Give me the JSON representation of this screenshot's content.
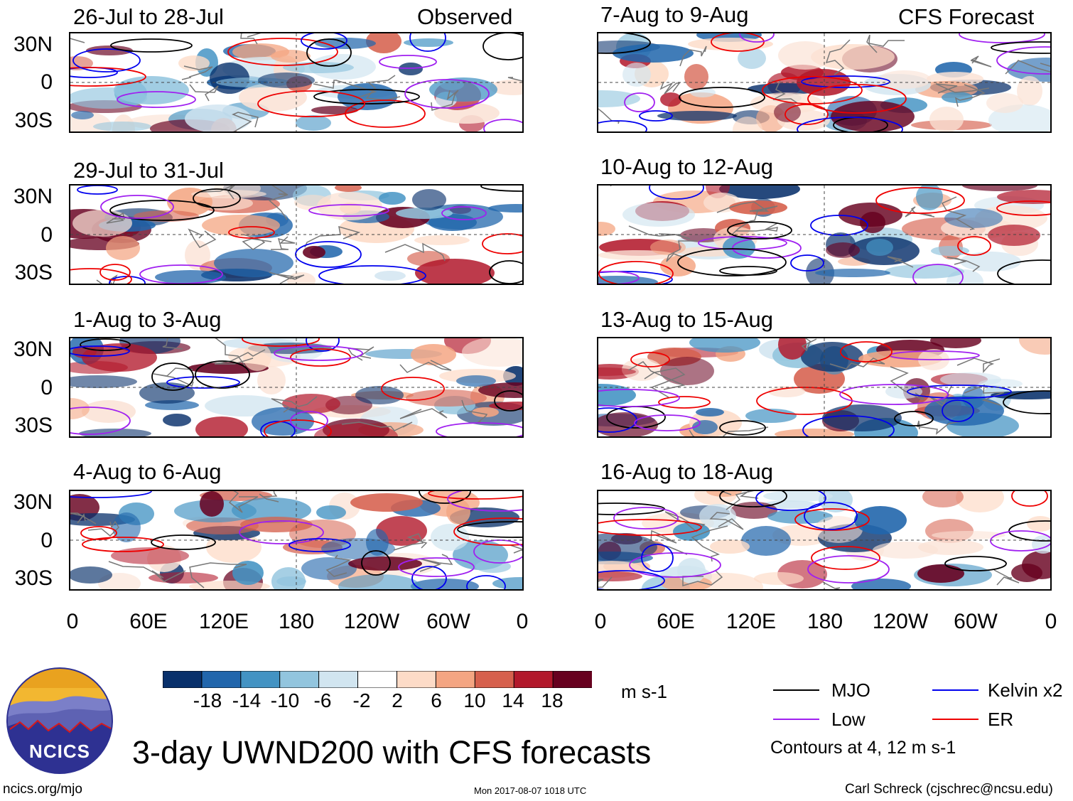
{
  "headers": {
    "left": "Observed",
    "right": "CFS Forecast"
  },
  "panels": [
    {
      "title": "26-Jul to 28-Jul",
      "kind": "observed"
    },
    {
      "title": "29-Jul to 31-Jul",
      "kind": "observed"
    },
    {
      "title": "1-Aug to 3-Aug",
      "kind": "observed"
    },
    {
      "title": "4-Aug to 6-Aug",
      "kind": "observed"
    },
    {
      "title": "7-Aug to 9-Aug",
      "kind": "forecast"
    },
    {
      "title": "10-Aug to 12-Aug",
      "kind": "forecast"
    },
    {
      "title": "13-Aug to 15-Aug",
      "kind": "forecast"
    },
    {
      "title": "16-Aug to 18-Aug",
      "kind": "forecast"
    }
  ],
  "lat_ticks": [
    "30N",
    "0",
    "30S"
  ],
  "lon_ticks": [
    "0",
    "60E",
    "120E",
    "180",
    "120W",
    "60W",
    "0"
  ],
  "colorbar": {
    "unit": "m s-1",
    "labels": [
      "-18",
      "-14",
      "-10",
      "-6",
      "-2",
      "2",
      "6",
      "10",
      "14",
      "18"
    ],
    "colors": [
      "#08306b",
      "#2166ac",
      "#4393c3",
      "#92c5de",
      "#d1e5f0",
      "#ffffff",
      "#fddbc7",
      "#f4a582",
      "#d6604d",
      "#b2182b",
      "#67001f"
    ]
  },
  "legend": {
    "items": [
      {
        "label": "MJO",
        "color": "#000000"
      },
      {
        "label": "Kelvin x2",
        "color": "#0000ee"
      },
      {
        "label": "Low",
        "color": "#a020f0"
      },
      {
        "label": "ER",
        "color": "#ee0000"
      }
    ],
    "note": "Contours at 4, 12 m s-1"
  },
  "logo": {
    "text": "NCICS"
  },
  "main_title": "3-day UWND200 with CFS forecasts",
  "footer": {
    "url": "ncics.org/mjo",
    "timestamp": "Mon 2017-08-07 1018 UTC",
    "credit": "Carl Schreck (cjschrec@ncsu.edu)"
  }
}
